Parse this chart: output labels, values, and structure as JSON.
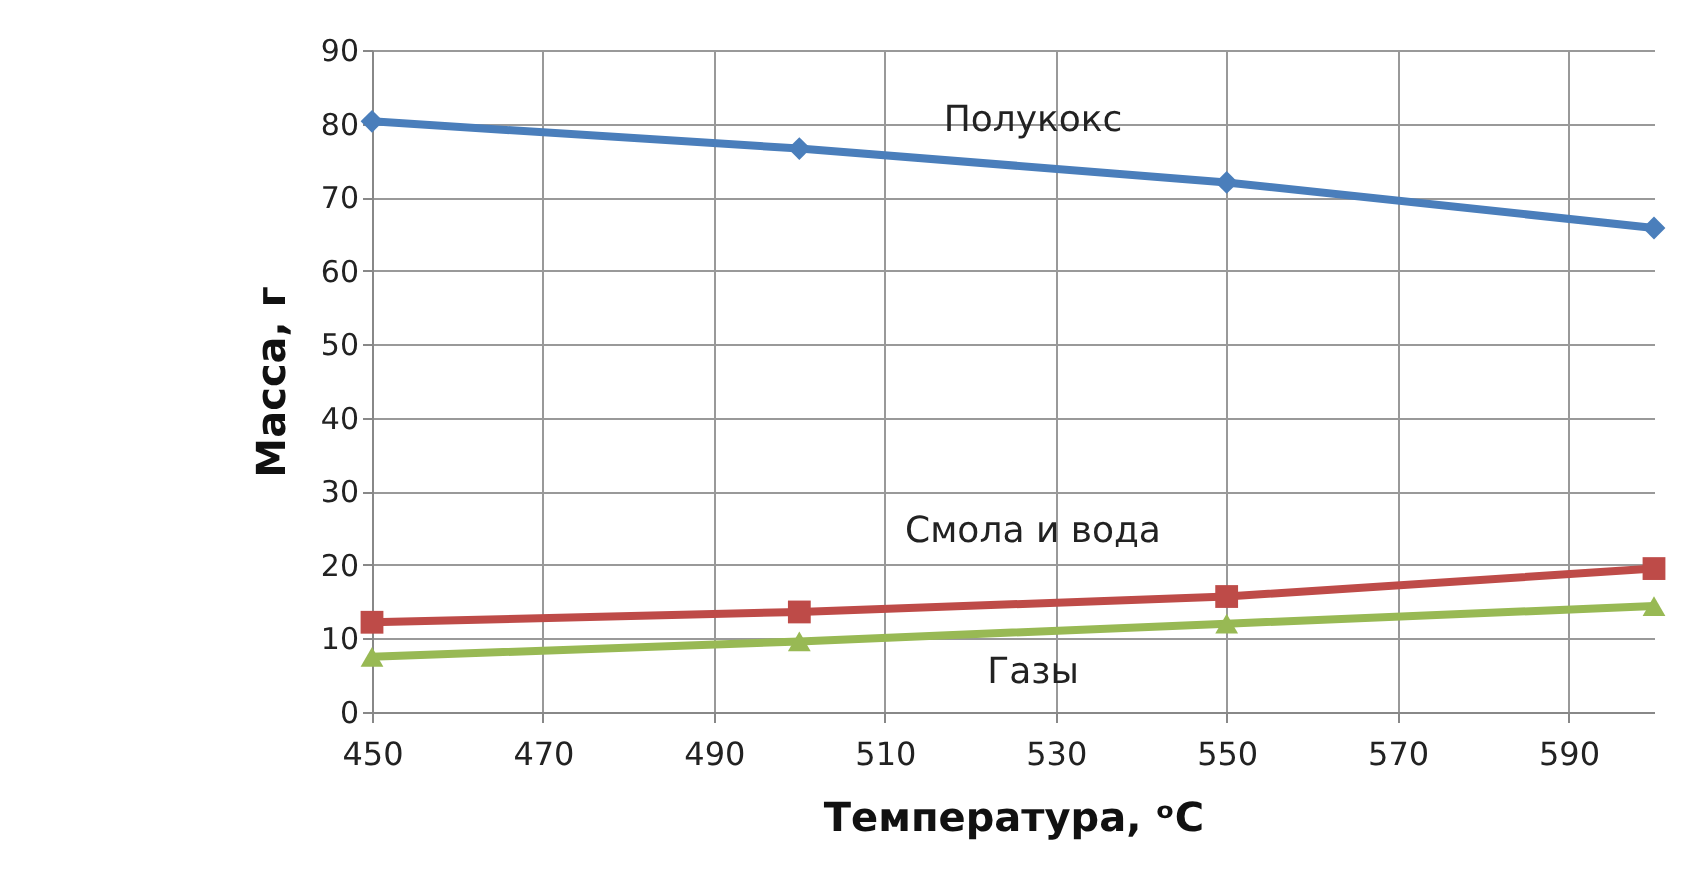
{
  "chart_data": {
    "type": "line",
    "xlabel": "Температура, ᵒC",
    "ylabel": "Масса, г",
    "x": [
      450,
      500,
      550,
      600
    ],
    "series": [
      {
        "name": "Полукокс",
        "color": "#4a7ebb",
        "marker": "diamond",
        "values": [
          80.3,
          76.6,
          72.0,
          65.8
        ]
      },
      {
        "name": "Смола и вода",
        "color": "#be4b48",
        "marker": "square",
        "values": [
          12.2,
          13.6,
          15.7,
          19.5
        ]
      },
      {
        "name": "Газы",
        "color": "#98b954",
        "marker": "triangle",
        "values": [
          7.5,
          9.6,
          12.0,
          14.4
        ]
      }
    ],
    "xlim": [
      450,
      600
    ],
    "xticks": [
      450,
      470,
      490,
      510,
      530,
      550,
      570,
      590
    ],
    "ylim": [
      0,
      90
    ],
    "yticks": [
      0,
      10,
      20,
      30,
      40,
      50,
      60,
      70,
      80,
      90
    ],
    "grid": true
  }
}
